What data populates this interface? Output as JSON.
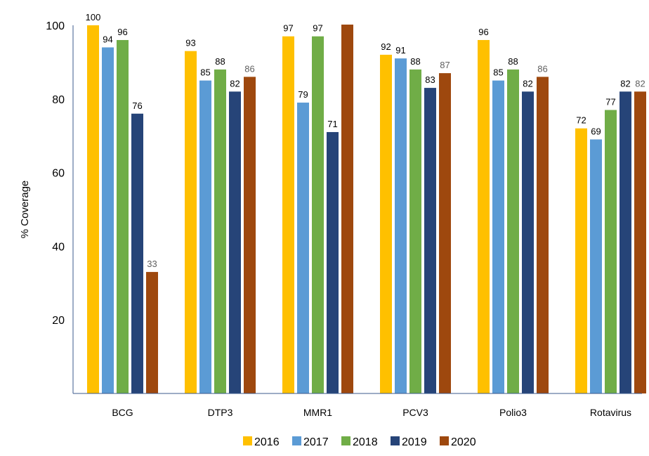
{
  "chart_data": {
    "type": "bar",
    "title": "",
    "xlabel": "",
    "ylabel": "% Coverage",
    "ylim": [
      0,
      100
    ],
    "yticks": [
      20,
      40,
      60,
      80,
      100
    ],
    "grid": false,
    "legend_position": "bottom",
    "categories": [
      "BCG",
      "DTP3",
      "MMR1",
      "PCV3",
      "Polio3",
      "Rotavirus"
    ],
    "series": [
      {
        "name": "2016",
        "color": "#FFC000",
        "values": [
          100,
          93,
          97,
          92,
          96,
          72
        ]
      },
      {
        "name": "2017",
        "color": "#5B9BD5",
        "values": [
          94,
          85,
          79,
          91,
          85,
          69
        ]
      },
      {
        "name": "2018",
        "color": "#70AD47",
        "values": [
          96,
          88,
          97,
          88,
          88,
          77
        ]
      },
      {
        "name": "2019",
        "color": "#264478",
        "values": [
          76,
          82,
          71,
          83,
          82,
          82
        ]
      },
      {
        "name": "2020",
        "color": "#9E480E",
        "values": [
          33,
          86,
          101,
          87,
          86,
          82
        ]
      }
    ],
    "data_labels": [
      [
        "100",
        "94",
        "96",
        "76",
        "33"
      ],
      [
        "93",
        "85",
        "88",
        "82",
        "86"
      ],
      [
        "97",
        "79",
        "97",
        "71",
        ""
      ],
      [
        "92",
        "91",
        "88",
        "83",
        "87"
      ],
      [
        "96",
        "85",
        "88",
        "82",
        "86"
      ],
      [
        "72",
        "69",
        "77",
        "82",
        "82"
      ]
    ]
  }
}
